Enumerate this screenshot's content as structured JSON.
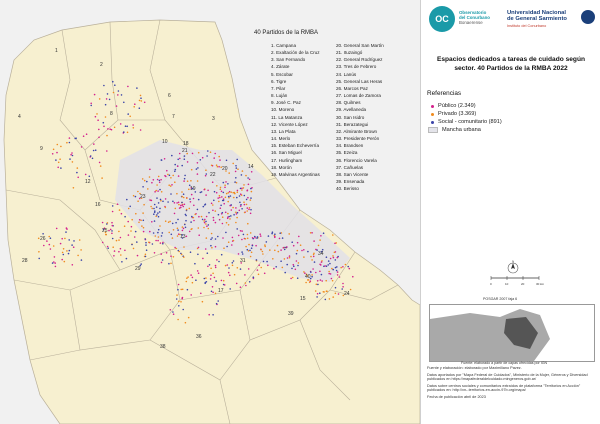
{
  "map": {
    "legend_title": "40 Partidos  de la RMBA",
    "partidos_col1": [
      "1. Campana",
      "2. Exaltación de la Cruz",
      "3. San Fernando",
      "4. Zárate",
      "5. Escobar",
      "6. Tigre",
      "7. Pilar",
      "8. Luján",
      "9. José C. Paz",
      "10. Moreno",
      "11. La Matanza",
      "12. Vicente López",
      "13. La Plata",
      "14. Merlo",
      "15. Esteban Echeverría",
      "16. San Miguel",
      "17. Hurlingham",
      "18. Morón",
      "19. Malvinas Argentinas"
    ],
    "partidos_col2": [
      "20. General San Martín",
      "21. Ituzaingó",
      "22. General Rodríguez",
      "23. Tres de Febrero",
      "24. Lanús",
      "25. General Las Heras",
      "26. Marcos Paz",
      "27. Lomas de Zamora",
      "28. Quilmes",
      "29. Avellaneda",
      "30. San Isidro",
      "31. Berazategui",
      "32. Almirante Brown",
      "33. Presidente Perón",
      "34. Brandsen",
      "35. Ezeiza",
      "36. Florencio Varela",
      "37. Cañuelas",
      "38. San Vicente",
      "39. Ensenada",
      "40. Berisso"
    ],
    "map_numbers": [
      "1",
      "2",
      "3",
      "4",
      "6",
      "7",
      "8",
      "9",
      "10",
      "12",
      "13",
      "14",
      "15",
      "16",
      "17",
      "18",
      "19",
      "20",
      "21",
      "22",
      "23",
      "25",
      "26",
      "28",
      "29",
      "31",
      "34",
      "36",
      "38",
      "39",
      "40",
      "24"
    ],
    "colors": {
      "land": "#f7f0d0",
      "water": "#ffffff",
      "border": "#b9b09a",
      "publico": "#d4208c",
      "privado": "#f08b1e",
      "social": "#3b44a8",
      "urbana": "#dcdce4"
    }
  },
  "panel": {
    "logo1": {
      "line1": "Observatorio",
      "line2": "del Conurbano",
      "line3": "Bonaerense",
      "initials": "OC"
    },
    "logo2": {
      "line1": "Universidad Nacional",
      "line2": "de General Sarmiento",
      "line3": "Instituto del Conurbano"
    },
    "title": "Espacios dedicados a tareas de cuidado según sector. 40 Partidos de la RMBA 2022",
    "ref_title": "Referencias",
    "refs": [
      {
        "label": "Público (2.349)",
        "color": "#d4208c"
      },
      {
        "label": "Privado (3.369)",
        "color": "#f08b1e"
      },
      {
        "label": "Social - comunitario (891)",
        "color": "#3b44a8"
      },
      {
        "label": "Mancha urbana",
        "color": "#dcdce4"
      }
    ],
    "north": "N",
    "scale_labels": [
      "0",
      "10",
      "20",
      "30 km"
    ],
    "projection": "POSGAR 2007 faja 6",
    "inset_caption": "Fuente: elaborado a partir de capas ofrecidas por IGN",
    "credits": [
      "Fuente y elaboración: elaborado por Maximiliano Pavez.",
      "Datos aportados por \"Mapa Federal de Cuidados\", Ministerio de la Mujer, Géneros y Diversidad publicados en https://mapafederaldelcuidado.mingeneros.gob.ar/",
      "Datos sobre centros sociales y comunitarios extraídos de plataforma \"Territorios en Acción\" publicados en: http://xn--territorios-en-accin-97b.org/mapa/",
      "Fecha de publicación abril de 2023"
    ]
  }
}
